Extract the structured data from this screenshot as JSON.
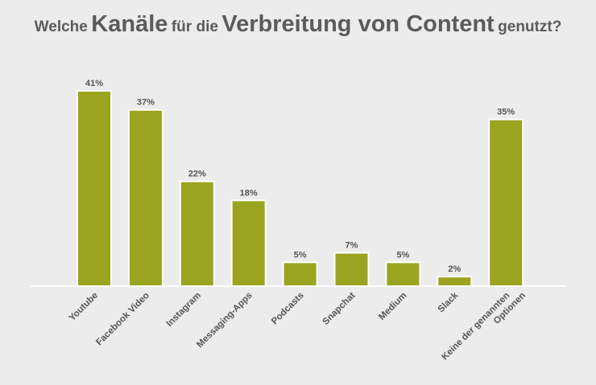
{
  "title": {
    "p1": "Welche",
    "p2": "Kanäle",
    "p3": "für die",
    "p4": "Verbreitung von Content",
    "p5": "genutzt?"
  },
  "chart_data": {
    "type": "bar",
    "title": "Welche Kanäle für die Verbreitung von Content genutzt?",
    "categories": [
      [
        "Youtube"
      ],
      [
        "Facebook Video"
      ],
      [
        "Instagram"
      ],
      [
        "Messaging-Apps"
      ],
      [
        "Podcasts"
      ],
      [
        "Snapchat"
      ],
      [
        "Medium"
      ],
      [
        "Slack"
      ],
      [
        "Keine der genannten",
        "Optionen"
      ]
    ],
    "values": [
      41,
      37,
      22,
      18,
      5,
      7,
      5,
      2,
      35
    ],
    "labels": [
      "41%",
      "37%",
      "22%",
      "18%",
      "5%",
      "7%",
      "5%",
      "2%",
      "35%"
    ],
    "unit": "%",
    "xlabel": "",
    "ylabel": "",
    "ylim": [
      0,
      41
    ],
    "grid": false,
    "colors": {
      "bar": "#9aa41f",
      "bar_outline": "#ffffff",
      "baseline": "#ffffff",
      "text": "#555555"
    }
  }
}
